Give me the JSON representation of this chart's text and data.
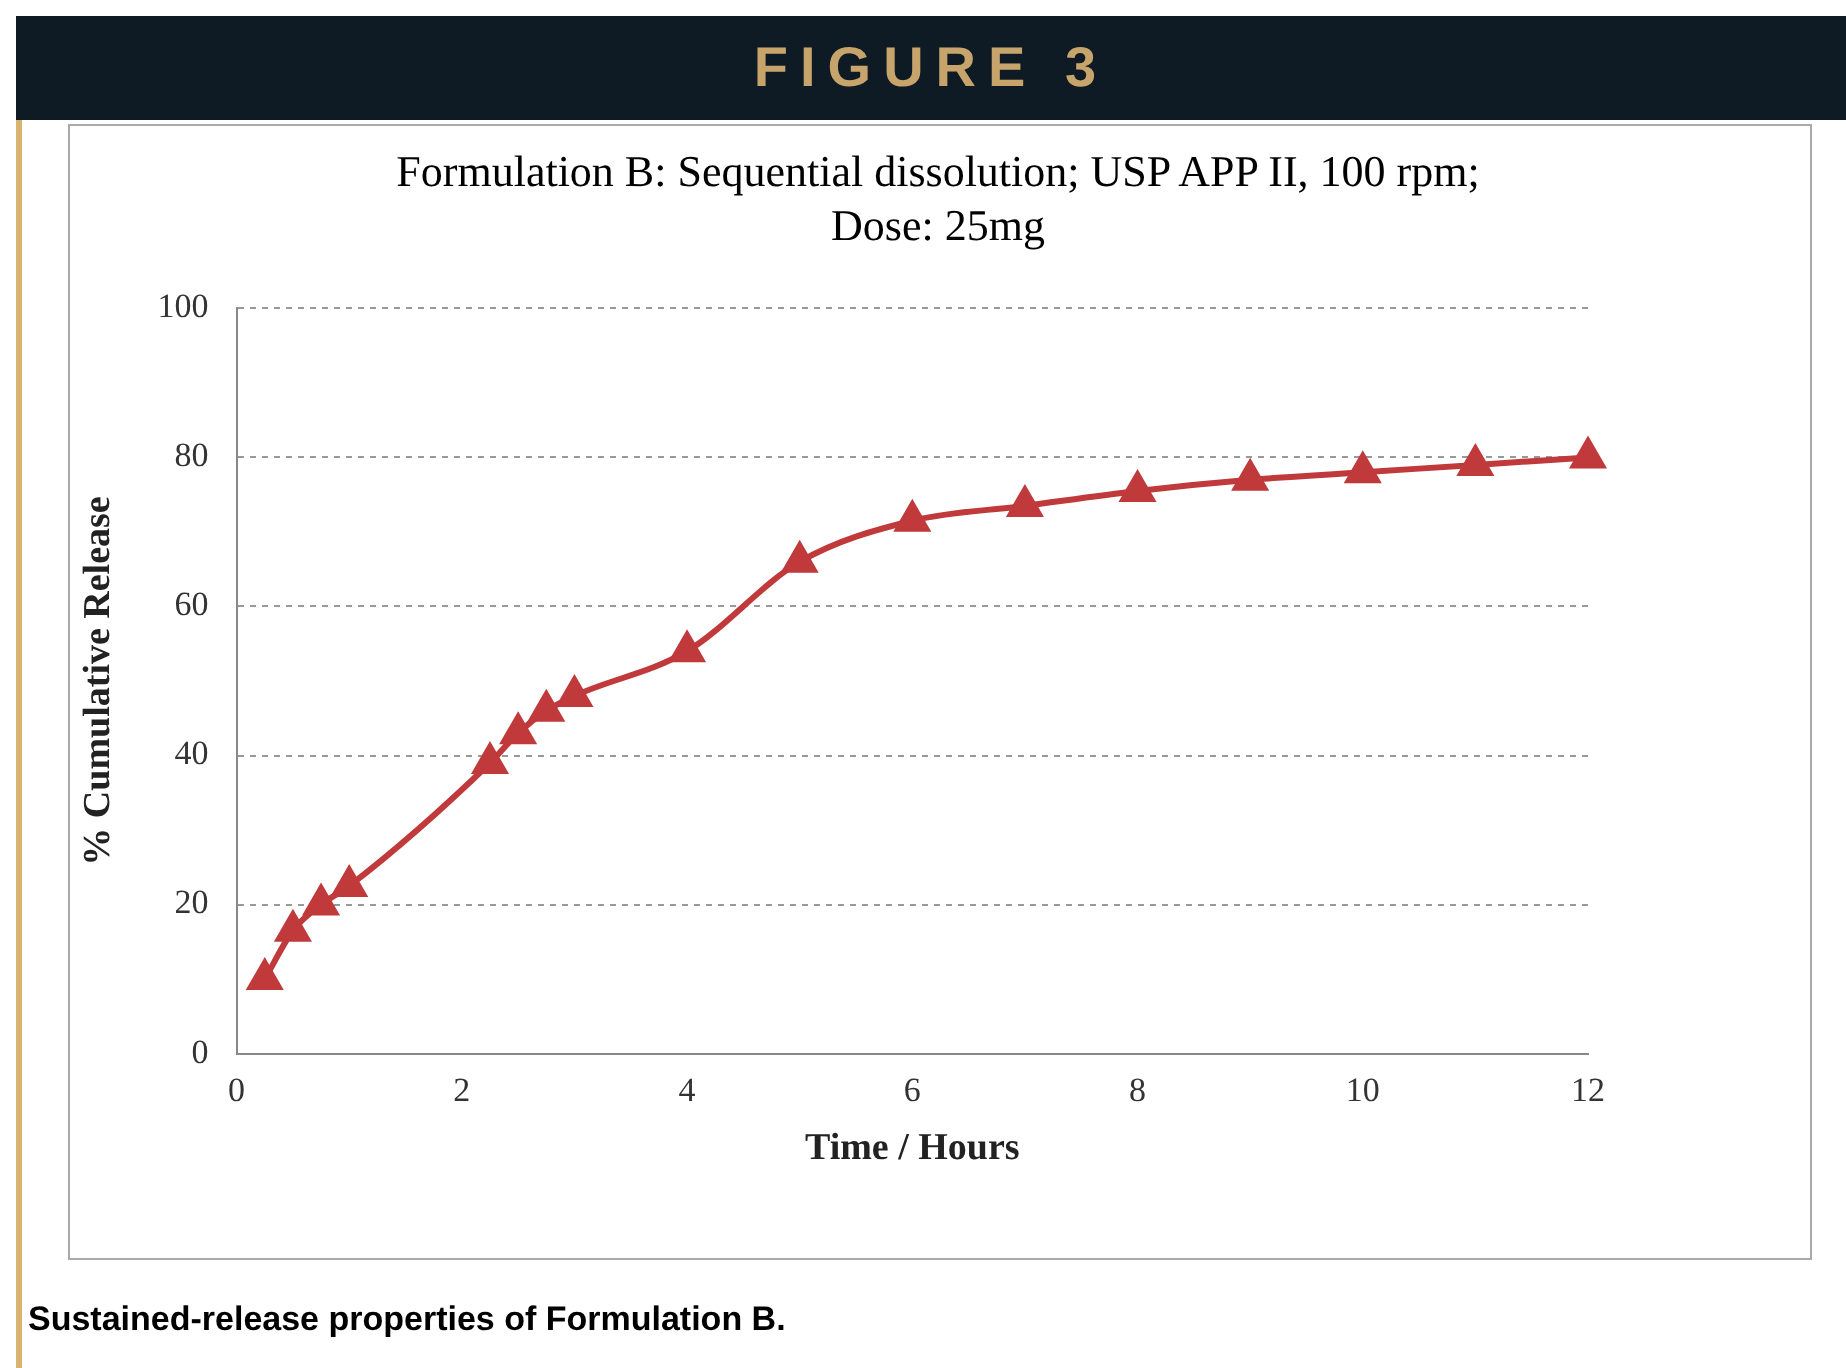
{
  "chart_data": {
    "type": "line",
    "title": "Formulation B: Sequential dissolution; USP APP II, 100 rpm; Dose: 25mg",
    "xlabel": "Time / Hours",
    "ylabel": "% Cumulative Release",
    "annotations": [
      "FIGURE 3",
      "Sustained-release properties of Formulation B."
    ],
    "x": [
      0.25,
      0.5,
      0.75,
      1,
      2.25,
      2.5,
      2.75,
      3,
      4,
      5,
      6,
      7,
      8,
      9,
      10,
      11,
      12
    ],
    "series": [
      {
        "color": "#c0393b",
        "values": [
          10,
          16.5,
          20,
          22.5,
          39,
          43,
          46,
          48,
          54,
          66,
          71.5,
          73.5,
          75.5,
          77,
          78,
          79,
          80
        ]
      }
    ],
    "xlim": [
      0,
      12
    ],
    "xticks": [
      0,
      2,
      4,
      6,
      8,
      10,
      12
    ],
    "ylim": [
      0,
      100
    ],
    "yticks": [
      0,
      20,
      40,
      60,
      80,
      100
    ],
    "grid": "y",
    "legend": false,
    "marker": "triangle",
    "line_style": "solid"
  }
}
